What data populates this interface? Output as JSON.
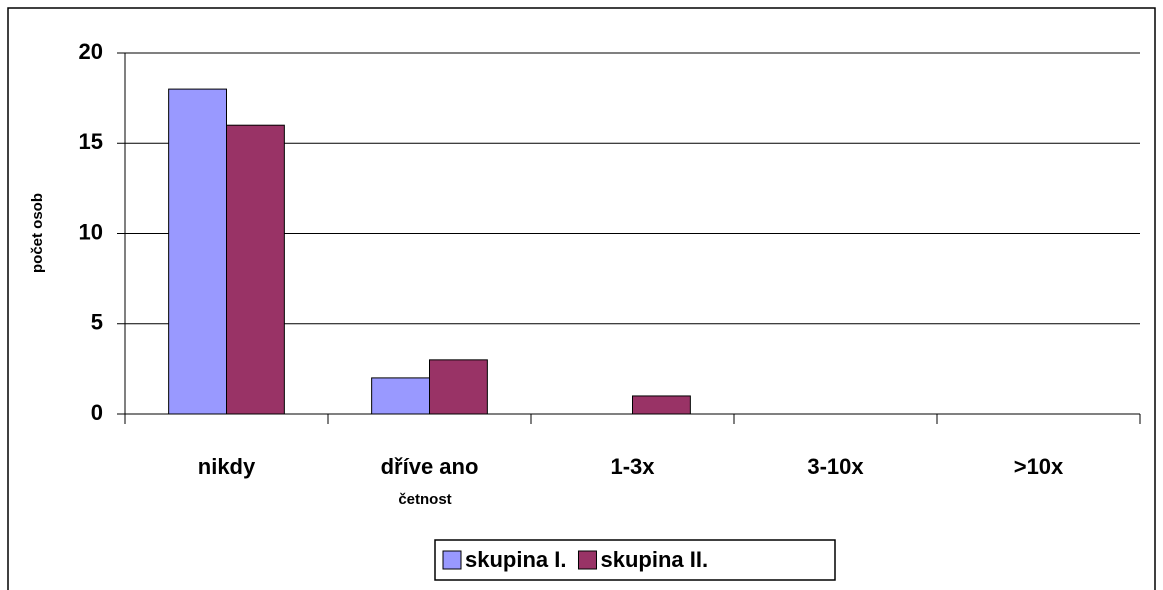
{
  "chart_data": {
    "type": "bar",
    "categories": [
      "nikdy",
      "dříve ano",
      "1-3x",
      "3-10x",
      ">10x"
    ],
    "series": [
      {
        "name": "skupina I.",
        "color": "#9999ff",
        "values": [
          18,
          2,
          0,
          0,
          0
        ]
      },
      {
        "name": "skupina II.",
        "color": "#993366",
        "values": [
          16,
          3,
          1,
          0,
          0
        ]
      }
    ],
    "x_label": "četnost",
    "y_label": "počet osob",
    "ylim": [
      0,
      20
    ],
    "yticks": [
      0,
      5,
      10,
      15,
      20
    ],
    "grid": true,
    "legend": "bottom"
  }
}
